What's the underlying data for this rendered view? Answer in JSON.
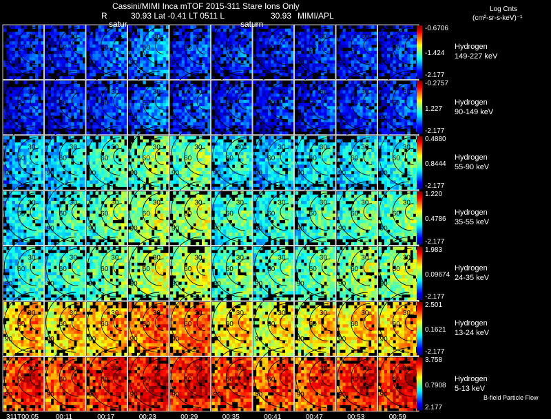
{
  "header": {
    "title": "Cassini/MIMI Inca mTOF  2015-311    Stare    Ions Only",
    "r_label": "R",
    "r_values": "30.93 Lat -0.41 LT 0511 L",
    "l_value": "30.93",
    "org": "MIMI/APL",
    "log_title": "Log Cnts",
    "units": "(cm²-sr-s-keV)⁻¹",
    "saturn_labels": [
      "satur",
      "saturn"
    ],
    "legend_flow": "B-field Particle Flow"
  },
  "chart_data": {
    "type": "heatmap",
    "title": "Cassini/MIMI Inca mTOF 2015-311 Stare Ions Only",
    "colorbar_label": "Log Cnts (cm²-sr-s-keV)⁻¹",
    "times": [
      "311T00:05",
      "00:11",
      "00:17",
      "00:23",
      "00:29",
      "00:35",
      "00:41",
      "00:47",
      "00:53",
      "00:59"
    ],
    "contour_labels": [
      "30",
      "60",
      "90"
    ],
    "rows": [
      {
        "species": "Hydrogen",
        "energy": "149-227 keV",
        "cb_max": "-0.6706",
        "cb_mid": "-1.424",
        "cb_min": "-2.177",
        "intensity": [
          0.1,
          0.12,
          0.16,
          0.22,
          0.14,
          0.12,
          0.11,
          0.12,
          0.13,
          0.12
        ]
      },
      {
        "species": "Hydrogen",
        "energy": "90-149 keV",
        "cb_max": "-0.2757",
        "cb_mid": "1.227",
        "cb_min": "-2.177",
        "intensity": [
          0.1,
          0.11,
          0.14,
          0.2,
          0.16,
          0.12,
          0.11,
          0.12,
          0.13,
          0.14
        ]
      },
      {
        "species": "Hydrogen",
        "energy": "55-90 keV",
        "cb_max": "0.4880",
        "cb_mid": "0.8444",
        "cb_min": "-2.177",
        "intensity": [
          0.28,
          0.32,
          0.4,
          0.46,
          0.44,
          0.34,
          0.3,
          0.32,
          0.34,
          0.36
        ]
      },
      {
        "species": "Hydrogen",
        "energy": "35-55 keV",
        "cb_max": "1.220",
        "cb_mid": "0.4786",
        "cb_min": "-2.177",
        "intensity": [
          0.34,
          0.38,
          0.44,
          0.5,
          0.5,
          0.4,
          0.38,
          0.4,
          0.42,
          0.44
        ]
      },
      {
        "species": "Hydrogen",
        "energy": "24-35 keV",
        "cb_max": "1.983",
        "cb_mid": "0.09674",
        "cb_min": "-2.177",
        "intensity": [
          0.36,
          0.4,
          0.46,
          0.52,
          0.52,
          0.44,
          0.42,
          0.44,
          0.48,
          0.5
        ]
      },
      {
        "species": "Hydrogen",
        "energy": "13-24 keV",
        "cb_max": "2.501",
        "cb_mid": "0.1621",
        "cb_min": "-2.177",
        "intensity": [
          0.66,
          0.62,
          0.66,
          0.74,
          0.74,
          0.62,
          0.58,
          0.6,
          0.64,
          0.66
        ]
      },
      {
        "species": "Hydrogen",
        "energy": "5-13 keV",
        "cb_max": "3.758",
        "cb_mid": "0.7908",
        "cb_min": "2.177",
        "intensity": [
          0.8,
          0.78,
          0.82,
          0.86,
          0.84,
          0.8,
          0.76,
          0.78,
          0.82,
          0.84
        ]
      }
    ]
  }
}
